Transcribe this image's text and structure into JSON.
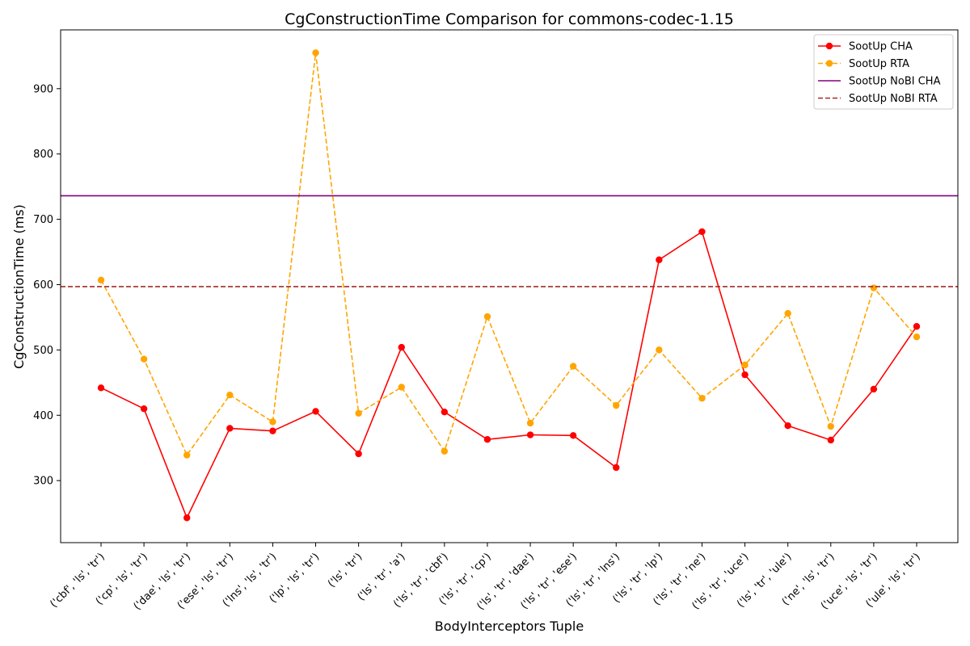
{
  "chart_data": {
    "type": "line",
    "title": "CgConstructionTime Comparison for commons-codec-1.15",
    "xlabel": "BodyInterceptors Tuple",
    "ylabel": "CgConstructionTime (ms)",
    "ylim": [
      205,
      990
    ],
    "yticks": [
      300,
      400,
      500,
      600,
      700,
      800,
      900
    ],
    "grid": false,
    "legend_position": "top-right",
    "categories": [
      "('cbf', 'ls', 'tr')",
      "('cp', 'ls', 'tr')",
      "('dae', 'ls', 'tr')",
      "('ese', 'ls', 'tr')",
      "('lns', 'ls', 'tr')",
      "('lp', 'ls', 'tr')",
      "('ls', 'tr')",
      "('ls', 'tr', 'a')",
      "('ls', 'tr', 'cbf')",
      "('ls', 'tr', 'cp')",
      "('ls', 'tr', 'dae')",
      "('ls', 'tr', 'ese')",
      "('ls', 'tr', 'lns')",
      "('ls', 'tr', 'lp')",
      "('ls', 'tr', 'ne')",
      "('ls', 'tr', 'uce')",
      "('ls', 'tr', 'ule')",
      "('ne', 'ls', 'tr')",
      "('uce', 'ls', 'tr')",
      "('ule', 'ls', 'tr')"
    ],
    "series": [
      {
        "name": "SootUp CHA",
        "color": "#ff0000",
        "style": "solid-marker",
        "values": [
          442,
          410,
          243,
          380,
          376,
          406,
          341,
          504,
          405,
          363,
          370,
          369,
          320,
          638,
          681,
          462,
          384,
          362,
          440,
          536
        ]
      },
      {
        "name": "SootUp RTA",
        "color": "#ffa500",
        "style": "dashed-marker",
        "values": [
          607,
          486,
          339,
          431,
          390,
          955,
          403,
          443,
          345,
          551,
          388,
          475,
          415,
          500,
          426,
          477,
          556,
          383,
          595,
          520
        ]
      },
      {
        "name": "SootUp NoBI CHA",
        "color": "#800080",
        "style": "hline-solid",
        "value": 736
      },
      {
        "name": "SootUp NoBI RTA",
        "color": "#a52a2a",
        "style": "hline-dashed",
        "value": 597
      }
    ]
  }
}
